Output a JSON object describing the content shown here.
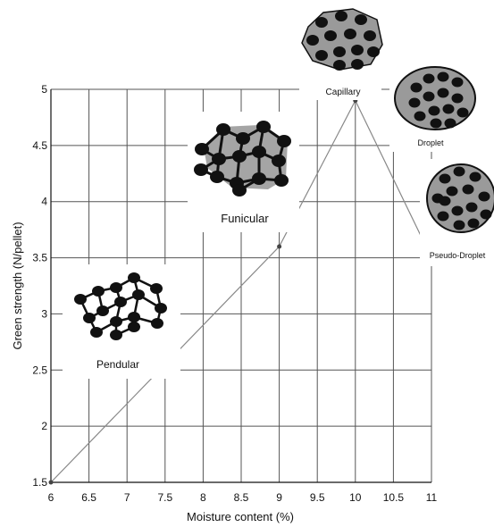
{
  "chart_data": {
    "type": "line",
    "xlabel": "Moisture content (%)",
    "ylabel": "Green strength (N/pellet)",
    "xlim": [
      6,
      11
    ],
    "ylim": [
      1.5,
      5
    ],
    "x_ticks": [
      "6",
      "6.5",
      "7",
      "7.5",
      "8",
      "8.5",
      "9",
      "9.5",
      "10",
      "10.5",
      "11"
    ],
    "y_ticks": [
      "1.5",
      "2",
      "2.5",
      "3",
      "3.5",
      "4",
      "4.5",
      "5"
    ],
    "grid": true,
    "series": [
      {
        "x": [
          6,
          9,
          10,
          11
        ],
        "y": [
          1.5,
          3.6,
          4.9,
          3.5
        ]
      }
    ],
    "annotations": [
      {
        "label": "Pendular",
        "marker": "pendular-illustration"
      },
      {
        "label": "Funicular",
        "marker": "funicular-illustration"
      },
      {
        "label": "Capillary",
        "marker": "capillary-illustration"
      },
      {
        "label": "Droplet",
        "marker": "droplet-illustration"
      },
      {
        "label": "Pseudo-Droplet",
        "marker": "pseudo-droplet-illustration"
      }
    ],
    "colors": {
      "line": "#888888",
      "grid": "#555555",
      "particle": "#111111",
      "liquid": "#9a9a9a"
    }
  }
}
